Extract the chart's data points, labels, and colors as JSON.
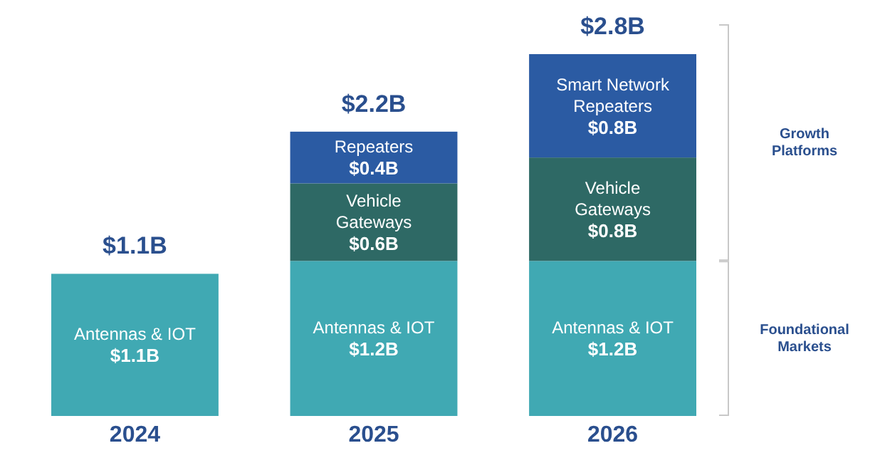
{
  "chart_data": {
    "type": "bar",
    "stacked": true,
    "categories": [
      "2024",
      "2025",
      "2026"
    ],
    "series": [
      {
        "color": "#40a9b3",
        "values": [
          1.1,
          1.2,
          1.2
        ],
        "value_labels": [
          "$1.1B",
          "$1.2B",
          "$1.2B"
        ]
      },
      {
        "color": "#2e6965",
        "values": [
          null,
          0.6,
          0.8
        ],
        "value_labels": [
          null,
          "$0.6B",
          "$0.8B"
        ]
      },
      {
        "color": "#2b5ba3",
        "values": [
          null,
          0.4,
          0.8
        ],
        "value_labels": [
          null,
          "$0.4B",
          "$0.8B"
        ]
      }
    ],
    "totals": [
      "$1.1B",
      "$2.2B",
      "$2.8B"
    ],
    "annotations": [
      "Antennas & IOT",
      "Antennas & IOT",
      "Antennas & IOT",
      "Vehicle\nGateways",
      "Vehicle\nGateways",
      "Repeaters",
      "Smart Network\nRepeaters",
      "Growth Platforms",
      "Foundational Markets"
    ]
  }
}
